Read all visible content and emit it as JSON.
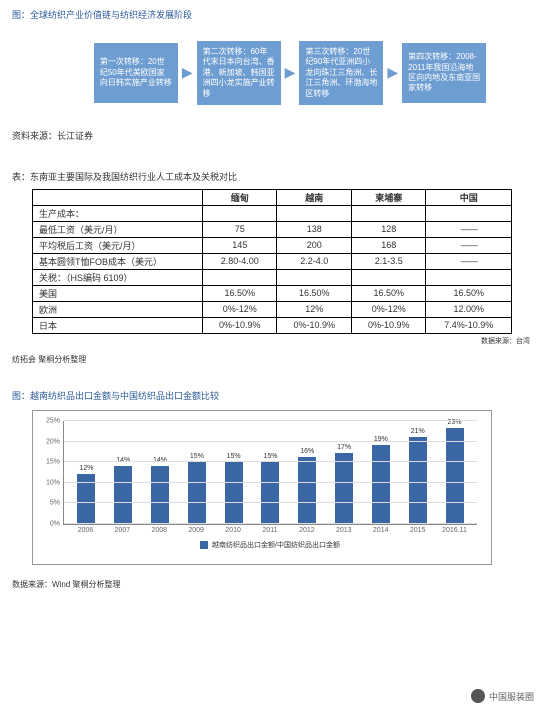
{
  "section1": {
    "title": "图：全球纺织产业价值链与纺织经济发展阶段",
    "flow": [
      "第一次转移：20世纪50年代美欧国家向日韩实施产业转移",
      "第二次转移：60年代末日本向台湾、香港、新加坡、韩国亚洲四小龙实施产业转移",
      "第三次转移：20世纪90年代亚洲四小龙向珠江三角洲、长江三角洲、环渤海地区转移",
      "第四次转移：2008-2011年我国沿海地区向内地及东南亚国家转移"
    ],
    "source": "资料来源：长江证券"
  },
  "section2": {
    "title": "表：东南亚主要国际及我国纺织行业人工成本及关税对比",
    "headers": [
      "",
      "缅甸",
      "越南",
      "柬埔寨",
      "中国"
    ],
    "rows": [
      [
        "生产成本：",
        "",
        "",
        "",
        ""
      ],
      [
        "最低工资（美元/月）",
        "75",
        "138",
        "128",
        "——"
      ],
      [
        "平均税后工资（美元/月）",
        "145",
        "200",
        "168",
        "——"
      ],
      [
        "基本圆领T恤FOB成本（美元）",
        "2.80-4.00",
        "2.2-4.0",
        "2.1-3.5",
        "——"
      ],
      [
        "关税：（HS编码 6109）",
        "",
        "",
        "",
        ""
      ],
      [
        "美国",
        "16.50%",
        "16.50%",
        "16.50%",
        "16.50%"
      ],
      [
        "欧洲",
        "0%-12%",
        "12%",
        "0%-12%",
        "12.00%"
      ],
      [
        "日本",
        "0%-10.9%",
        "0%-10.9%",
        "0%-10.9%",
        "7.4%-10.9%"
      ]
    ],
    "source_right": "数据来源：台湾",
    "source_left": "纺拓会  聚桐分析整理"
  },
  "section3": {
    "title": "图：越南纺织品出口金额与中国纺织品出口金额比较",
    "chart": {
      "type": "bar",
      "ylim": [
        0,
        25
      ],
      "ytick_step": 5,
      "bar_color": "#3a66a3",
      "grid_color": "#dddddd",
      "categories": [
        "2006",
        "2007",
        "2008",
        "2009",
        "2010",
        "2011",
        "2012",
        "2013",
        "2014",
        "2015",
        "2016.11"
      ],
      "values": [
        12,
        14,
        14,
        15,
        15,
        15,
        16,
        17,
        19,
        21,
        23
      ],
      "value_labels": [
        "12%",
        "14%",
        "14%",
        "15%",
        "15%",
        "15%",
        "16%",
        "17%",
        "19%",
        "21%",
        "23%"
      ],
      "ylabels": [
        "0%",
        "5%",
        "10%",
        "15%",
        "20%",
        "25%"
      ],
      "legend": "越南纺织品出口金额/中国纺织品出口金额"
    },
    "source": "数据来源：Wind   聚桐分析整理"
  },
  "footer": {
    "brand": "中国服装圈"
  }
}
